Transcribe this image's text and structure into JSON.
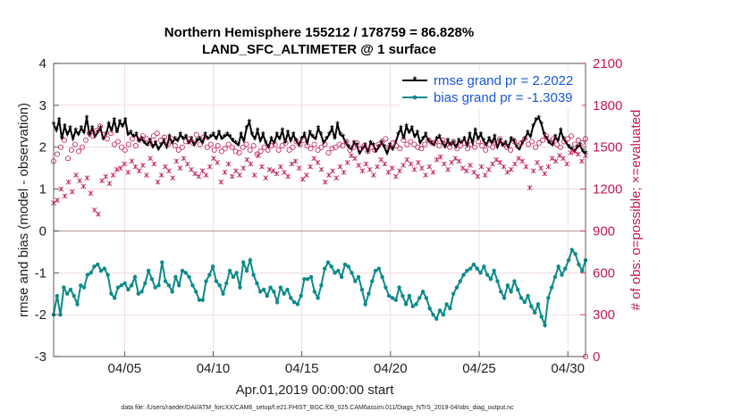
{
  "chart_data": {
    "type": "line",
    "title": "Northern Hemisphere 155212 / 178759 = 86.828%",
    "subtitle": "LAND_SFC_ALTIMETER @ 1 surface",
    "xlabel": "Apr.01,2019 00:00:00 start",
    "ylabel": "rmse and bias (model - observation)",
    "ylabel_right": "# of obs: o=possible; ×=evaluated",
    "ylim": [
      -3,
      4
    ],
    "ylim_right": [
      0,
      2100
    ],
    "xlim": [
      1,
      31
    ],
    "yticks": [
      "-3",
      "-2",
      "-1",
      "0",
      "1",
      "2",
      "3",
      "4"
    ],
    "yticks_right": [
      "0",
      "300",
      "600",
      "900",
      "1200",
      "1500",
      "1800",
      "2100"
    ],
    "xticks": [
      {
        "x": 5,
        "label": "04/05"
      },
      {
        "x": 10,
        "label": "04/10"
      },
      {
        "x": 15,
        "label": "04/15"
      },
      {
        "x": 20,
        "label": "04/20"
      },
      {
        "x": 25,
        "label": "04/25"
      },
      {
        "x": 30,
        "label": "04/30"
      }
    ],
    "series": [
      {
        "name": "rmse grand pr = 2.2022",
        "axis": "left",
        "color": "#000000",
        "values": [
          2.55,
          2.4,
          2.65,
          2.2,
          2.5,
          2.3,
          2.45,
          2.2,
          2.4,
          2.3,
          2.45,
          2.35,
          2.7,
          2.3,
          2.45,
          2.25,
          2.35,
          2.45,
          2.2,
          2.3,
          2.55,
          2.4,
          2.65,
          2.35,
          2.6,
          2.5,
          2.65,
          2.3,
          2.35,
          2.25,
          2.3,
          2.15,
          2.2,
          2.1,
          2.05,
          2.15,
          2.0,
          2.1,
          1.95,
          2.05,
          2.15,
          2.0,
          2.25,
          2.1,
          2.2,
          2.15,
          2.3,
          2.2,
          2.25,
          2.1,
          2.2,
          2.05,
          2.15,
          2.2,
          2.1,
          2.3,
          2.2,
          2.25,
          2.3,
          2.2,
          2.35,
          2.2,
          2.25,
          2.3,
          2.25,
          2.15,
          2.1,
          2.05,
          2.3,
          2.15,
          2.45,
          2.6,
          2.3,
          2.2,
          2.4,
          2.15,
          2.3,
          2.1,
          2.0,
          2.2,
          2.1,
          2.3,
          2.2,
          2.4,
          2.1,
          2.35,
          2.15,
          2.3,
          2.15,
          2.05,
          2.2,
          2.3,
          2.1,
          2.35,
          2.25,
          2.2,
          2.45,
          2.3,
          2.1,
          2.2,
          2.3,
          2.45,
          2.2,
          2.55,
          2.3,
          2.25,
          2.1,
          2.0,
          1.95,
          2.1,
          2.05,
          1.85,
          1.95,
          2.05,
          1.9,
          2.1,
          2.05,
          1.9,
          2.0,
          2.1,
          2.0,
          1.85,
          2.05,
          1.95,
          2.1,
          2.3,
          2.45,
          2.2,
          2.5,
          2.35,
          2.45,
          2.25,
          2.35,
          2.1,
          2.2,
          2.3,
          2.15,
          2.1,
          2.05,
          2.2,
          2.25,
          2.1,
          2.0,
          2.15,
          2.05,
          2.1,
          2.0,
          2.15,
          2.1,
          2.2,
          2.05,
          2.3,
          2.1,
          2.4,
          2.2,
          2.3,
          2.15,
          2.05,
          2.2,
          2.1,
          2.25,
          2.0,
          2.15,
          2.05,
          2.1,
          2.0,
          2.2,
          2.15,
          2.0,
          1.95,
          2.1,
          2.2,
          2.35,
          2.25,
          2.5,
          2.65,
          2.7,
          2.55,
          2.3,
          2.2,
          2.1,
          2.05,
          2.25,
          2.15,
          2.4,
          2.2,
          2.1,
          2.0,
          1.95,
          1.9,
          2.0,
          2.05,
          1.9,
          1.85
        ]
      },
      {
        "name": "bias grand pr = -1.3039",
        "axis": "left",
        "color": "#0c8a8a",
        "values": [
          -2.0,
          -1.55,
          -2.0,
          -1.35,
          -1.5,
          -1.4,
          -1.55,
          -1.75,
          -1.3,
          -1.35,
          -1.05,
          -1.0,
          -0.85,
          -0.8,
          -0.95,
          -0.9,
          -1.05,
          -1.5,
          -1.6,
          -1.35,
          -1.3,
          -1.25,
          -1.4,
          -1.3,
          -1.1,
          -1.5,
          -1.45,
          -1.25,
          -0.95,
          -1.15,
          -1.35,
          -1.3,
          -0.75,
          -1.2,
          -1.3,
          -1.45,
          -1.1,
          -1.3,
          -0.95,
          -1.0,
          -1.1,
          -1.3,
          -1.45,
          -1.65,
          -1.65,
          -1.2,
          -1.05,
          -0.85,
          -1.2,
          -1.3,
          -1.5,
          -1.25,
          -0.95,
          -1.1,
          -1.0,
          -1.35,
          -0.75,
          -0.95,
          -0.7,
          -1.05,
          -1.25,
          -1.45,
          -1.4,
          -1.55,
          -1.35,
          -1.45,
          -1.7,
          -1.35,
          -1.5,
          -1.4,
          -1.6,
          -1.7,
          -1.75,
          -1.55,
          -1.15,
          -1.15,
          -1.1,
          -1.45,
          -1.6,
          -1.3,
          -0.9,
          -0.75,
          -0.85,
          -1.0,
          -0.95,
          -1.1,
          -0.8,
          -0.85,
          -1.0,
          -1.2,
          -1.1,
          -1.4,
          -1.75,
          -1.5,
          -1.2,
          -0.95,
          -0.9,
          -1.1,
          -1.35,
          -1.55,
          -1.6,
          -1.65,
          -1.35,
          -1.55,
          -1.75,
          -1.55,
          -1.8,
          -1.75,
          -1.6,
          -1.45,
          -1.6,
          -1.85,
          -2.0,
          -2.1,
          -1.9,
          -2.0,
          -1.75,
          -1.85,
          -1.5,
          -1.35,
          -1.2,
          -1.05,
          -0.95,
          -0.9,
          -0.8,
          -0.9,
          -1.0,
          -0.85,
          -1.05,
          -1.15,
          -0.95,
          -1.2,
          -1.45,
          -1.6,
          -1.3,
          -1.45,
          -1.2,
          -1.4,
          -1.6,
          -1.7,
          -1.55,
          -1.8,
          -1.95,
          -1.75,
          -2.05,
          -2.25,
          -1.6,
          -1.35,
          -1.1,
          -0.85,
          -1.05,
          -0.9,
          -0.7,
          -0.45,
          -0.55,
          -0.8,
          -0.95,
          -0.7
        ],
        "note": "evenly spaced from day 1 to day 31"
      },
      {
        "name": "possible",
        "axis": "right",
        "marker": "o",
        "color": "#c2185b",
        "values": [
          1400,
          1450,
          1500,
          1550,
          1420,
          1480,
          1520,
          1470,
          1500,
          1550,
          1600,
          1580,
          1620,
          1650,
          1590,
          1560,
          1600,
          1520,
          1540,
          1500,
          1480,
          1520,
          1560,
          1510,
          1550,
          1580,
          1560,
          1530,
          1580,
          1600,
          1550,
          1570,
          1520,
          1560,
          1510,
          1480,
          1500,
          1540,
          1560,
          1530,
          1590,
          1520,
          1570,
          1500,
          1520,
          1480,
          1510,
          1470,
          1490,
          1520,
          1500,
          1470,
          1460,
          1500,
          1520,
          1480,
          1510,
          1450,
          1470,
          1500,
          1480,
          1510,
          1520,
          1480,
          1510,
          1530,
          1480,
          1500,
          1540,
          1520,
          1550,
          1510,
          1490,
          1520,
          1480,
          1500,
          1520,
          1460,
          1490,
          1500,
          1520,
          1510,
          1540,
          1480,
          1500,
          1530,
          1490,
          1510,
          1470,
          1500,
          1480,
          1520,
          1540,
          1560,
          1500,
          1530,
          1510,
          1490,
          1550,
          1520,
          1540,
          1520,
          1500,
          1490,
          1520,
          1550,
          1530,
          1540,
          1510,
          1550,
          1520,
          1500,
          1540,
          1490,
          1510,
          1530,
          1490,
          1520,
          1500,
          1540,
          1510,
          1480,
          1520,
          1500,
          1530,
          1560,
          1520,
          1500,
          1480,
          1540,
          1510,
          1530,
          1560,
          1520,
          1540,
          1500,
          1530,
          1550,
          1580,
          1540,
          1560,
          1520,
          1500,
          1540,
          1560,
          1580,
          1520,
          1550,
          1530,
          1560
        ]
      },
      {
        "name": "evaluated",
        "axis": "right",
        "marker": "x",
        "color": "#c2185b",
        "values": [
          1100,
          1120,
          1200,
          1150,
          1250,
          1180,
          1300,
          1260,
          1220,
          1280,
          1170,
          1050,
          1020,
          1260,
          1290,
          1240,
          1300,
          1340,
          1350,
          1380,
          1320,
          1400,
          1360,
          1330,
          1370,
          1300,
          1420,
          1380,
          1250,
          1300,
          1360,
          1330,
          1280,
          1400,
          1350,
          1420,
          1380,
          1340,
          1310,
          1290,
          1330,
          1300,
          1360,
          1420,
          1390,
          1250,
          1320,
          1380,
          1290,
          1330,
          1300,
          1350,
          1410,
          1380,
          1300,
          1440,
          1360,
          1280,
          1340,
          1330,
          1310,
          1360,
          1320,
          1290,
          1380,
          1400,
          1350,
          1270,
          1300,
          1360,
          1420,
          1390,
          1340,
          1250,
          1300,
          1330,
          1280,
          1360,
          1320,
          1390,
          1440,
          1420,
          1370,
          1330,
          1380,
          1340,
          1300,
          1360,
          1410,
          1380,
          1320,
          1350,
          1290,
          1330,
          1370,
          1410,
          1380,
          1340,
          1390,
          1350,
          1300,
          1360,
          1320,
          1410,
          1430,
          1380,
          1340,
          1390,
          1420,
          1400,
          1350,
          1330,
          1370,
          1320,
          1290,
          1360,
          1300,
          1340,
          1380,
          1410,
          1390,
          1360,
          1320,
          1340,
          1380,
          1420,
          1400,
          1360,
          1210,
          1330,
          1390,
          1350,
          1310,
          1360,
          1420,
          1400,
          1440,
          1420,
          1380,
          1460,
          1470,
          1450,
          1400,
          1440
        ]
      }
    ],
    "legend": {
      "placement": "top-right",
      "entries": [
        "rmse grand pr = 2.2022",
        "bias grand pr = -1.3039"
      ]
    },
    "footer": "data file: /Users/raeder/DAI/ATM_forcXX/CAM6_setup/f.e21.FHIST_BGC.f09_025.CAM6assim.011/Diags_NTrS_2019-04/obs_diag_output.nc"
  }
}
